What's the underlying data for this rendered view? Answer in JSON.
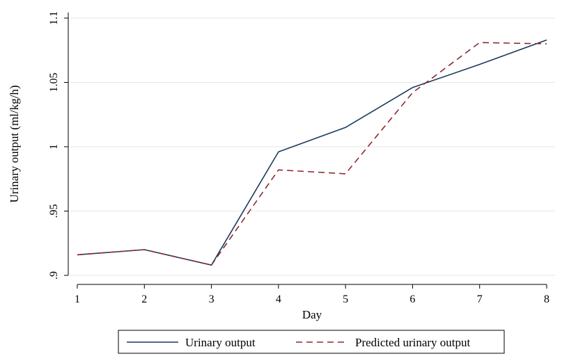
{
  "chart_data": {
    "type": "line",
    "xlabel": "Day",
    "ylabel": "Urinary output (ml/kg/h)",
    "x": [
      1,
      2,
      3,
      4,
      5,
      6,
      7,
      8
    ],
    "xlim": [
      1,
      8
    ],
    "ylim": [
      0.9,
      1.1
    ],
    "x_ticks": [
      "1",
      "2",
      "3",
      "4",
      "5",
      "6",
      "7",
      "8"
    ],
    "y_ticks": [
      ".9",
      ".95",
      "1",
      "1.05",
      "1.1"
    ],
    "y_tick_values": [
      0.9,
      0.95,
      1.0,
      1.05,
      1.1
    ],
    "grid": "horizontal",
    "legend_position": "bottom",
    "series": [
      {
        "name": "Urinary output",
        "style": "solid",
        "color": "#1a3a5c",
        "values": [
          0.916,
          0.92,
          0.908,
          0.996,
          1.015,
          1.046,
          1.064,
          1.083
        ]
      },
      {
        "name": "Predicted urinary output",
        "style": "dashed",
        "color": "#8c2a32",
        "values": [
          0.916,
          0.92,
          0.908,
          0.982,
          0.979,
          1.042,
          1.081,
          1.08
        ]
      }
    ]
  }
}
